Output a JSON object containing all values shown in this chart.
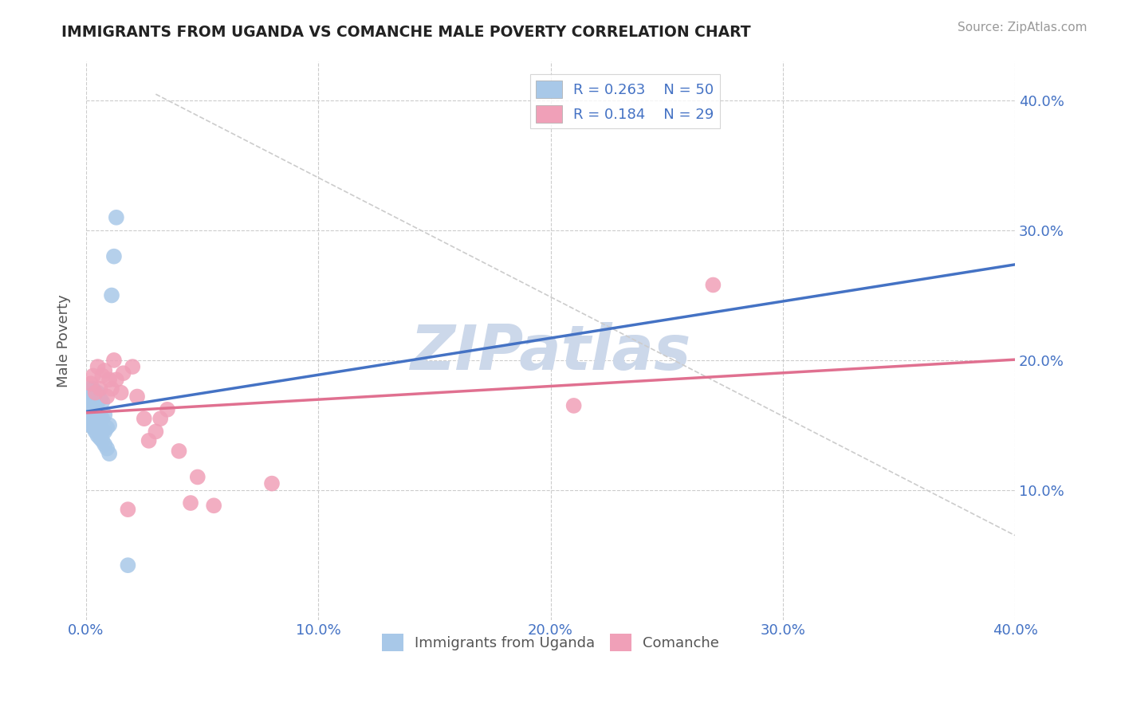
{
  "title": "IMMIGRANTS FROM UGANDA VS COMANCHE MALE POVERTY CORRELATION CHART",
  "source": "Source: ZipAtlas.com",
  "ylabel": "Male Poverty",
  "xlim": [
    0.0,
    0.4
  ],
  "ylim": [
    0.0,
    0.43
  ],
  "xtick_vals": [
    0.0,
    0.1,
    0.2,
    0.3,
    0.4
  ],
  "xtick_labels": [
    "0.0%",
    "10.0%",
    "20.0%",
    "30.0%",
    "40.0%"
  ],
  "ytick_vals": [
    0.1,
    0.2,
    0.3,
    0.4
  ],
  "ytick_labels": [
    "10.0%",
    "20.0%",
    "30.0%",
    "40.0%"
  ],
  "legend_labels": [
    "Immigrants from Uganda",
    "Comanche"
  ],
  "R_uganda": 0.263,
  "N_uganda": 50,
  "R_comanche": 0.184,
  "N_comanche": 29,
  "blue_color": "#a8c8e8",
  "pink_color": "#f0a0b8",
  "blue_line_color": "#4472c4",
  "pink_line_color": "#e07090",
  "axis_label_color": "#4472c4",
  "background_color": "#ffffff",
  "grid_color": "#cccccc",
  "watermark_color": "#ccd8ea",
  "uganda_x": [
    0.001,
    0.001,
    0.001,
    0.001,
    0.001,
    0.001,
    0.001,
    0.001,
    0.001,
    0.002,
    0.002,
    0.002,
    0.002,
    0.002,
    0.003,
    0.003,
    0.003,
    0.003,
    0.003,
    0.003,
    0.003,
    0.004,
    0.004,
    0.004,
    0.004,
    0.004,
    0.005,
    0.005,
    0.005,
    0.005,
    0.005,
    0.006,
    0.006,
    0.006,
    0.006,
    0.007,
    0.007,
    0.007,
    0.007,
    0.008,
    0.008,
    0.008,
    0.009,
    0.009,
    0.01,
    0.01,
    0.011,
    0.012,
    0.013,
    0.018
  ],
  "uganda_y": [
    0.155,
    0.16,
    0.162,
    0.165,
    0.168,
    0.17,
    0.172,
    0.175,
    0.178,
    0.15,
    0.155,
    0.16,
    0.165,
    0.172,
    0.148,
    0.152,
    0.155,
    0.16,
    0.165,
    0.17,
    0.178,
    0.145,
    0.148,
    0.155,
    0.162,
    0.168,
    0.142,
    0.148,
    0.155,
    0.162,
    0.175,
    0.14,
    0.148,
    0.155,
    0.17,
    0.138,
    0.145,
    0.155,
    0.168,
    0.135,
    0.145,
    0.158,
    0.132,
    0.148,
    0.128,
    0.15,
    0.25,
    0.28,
    0.31,
    0.042
  ],
  "comanche_x": [
    0.002,
    0.003,
    0.004,
    0.005,
    0.006,
    0.007,
    0.008,
    0.009,
    0.01,
    0.011,
    0.012,
    0.013,
    0.015,
    0.016,
    0.018,
    0.02,
    0.022,
    0.025,
    0.027,
    0.03,
    0.032,
    0.035,
    0.04,
    0.045,
    0.048,
    0.055,
    0.08,
    0.21,
    0.27
  ],
  "comanche_y": [
    0.182,
    0.188,
    0.175,
    0.195,
    0.178,
    0.188,
    0.192,
    0.172,
    0.185,
    0.178,
    0.2,
    0.185,
    0.175,
    0.19,
    0.085,
    0.195,
    0.172,
    0.155,
    0.138,
    0.145,
    0.155,
    0.162,
    0.13,
    0.09,
    0.11,
    0.088,
    0.105,
    0.165,
    0.258
  ],
  "diag_line": [
    [
      0.03,
      0.4
    ],
    [
      0.405,
      0.065
    ]
  ]
}
